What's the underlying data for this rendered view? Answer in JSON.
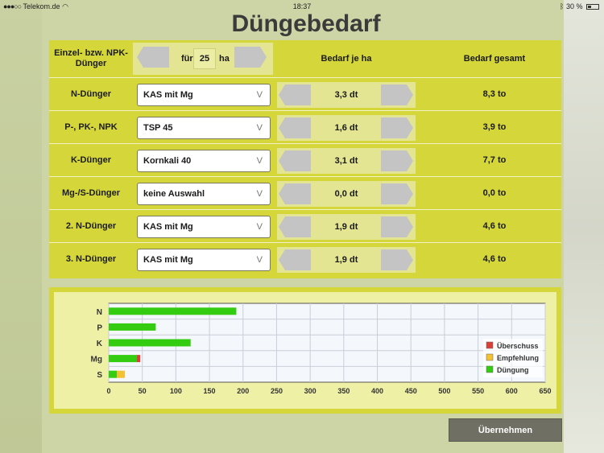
{
  "statusbar": {
    "carrier": "Telekom.de",
    "time": "18:37",
    "battery": "30 %"
  },
  "title": "Düngebedarf",
  "header": {
    "label": "Einzel- bzw. NPK-Dünger",
    "for_label": "für",
    "hectares": "25",
    "unit": "ha",
    "col_per_ha": "Bedarf je ha",
    "col_total": "Bedarf gesamt"
  },
  "rows": [
    {
      "label": "N-Dünger",
      "product": "KAS mit Mg",
      "per_ha": "3,3 dt",
      "total": "8,3 to"
    },
    {
      "label": "P-, PK-, NPK",
      "product": "TSP 45",
      "per_ha": "1,6 dt",
      "total": "3,9 to"
    },
    {
      "label": "K-Dünger",
      "product": "Kornkali 40",
      "per_ha": "3,1 dt",
      "total": "7,7 to"
    },
    {
      "label": "Mg-/S-Dünger",
      "product": "keine Auswahl",
      "per_ha": "0,0 dt",
      "total": "0,0 to"
    },
    {
      "label": "2. N-Dünger",
      "product": "KAS mit Mg",
      "per_ha": "1,9 dt",
      "total": "4,6 to"
    },
    {
      "label": "3. N-Dünger",
      "product": "KAS mit Mg",
      "per_ha": "1,9 dt",
      "total": "4,6 to"
    }
  ],
  "dropdown_caret": "V",
  "apply_button": "Übernehmen",
  "colors": {
    "duengung": "#33cc11",
    "empfehlung": "#f2c232",
    "ueberschuss": "#d9403a"
  },
  "chart_data": {
    "type": "bar",
    "orientation": "horizontal",
    "stacked": true,
    "categories": [
      "N",
      "P",
      "K",
      "Mg",
      "S"
    ],
    "series": [
      {
        "name": "Düngung",
        "values": [
          190,
          70,
          122,
          42,
          12
        ]
      },
      {
        "name": "Empfehlung",
        "values": [
          0,
          0,
          0,
          0,
          12
        ]
      },
      {
        "name": "Überschuss",
        "values": [
          0,
          0,
          0,
          5,
          0
        ]
      }
    ],
    "xlim": [
      0,
      650
    ],
    "xticks": [
      0,
      50,
      100,
      150,
      200,
      250,
      300,
      350,
      400,
      450,
      500,
      550,
      600,
      650
    ],
    "grid": true,
    "legend_position": "bottom-right",
    "legend": [
      "Überschuss",
      "Empfehlung",
      "Düngung"
    ]
  }
}
